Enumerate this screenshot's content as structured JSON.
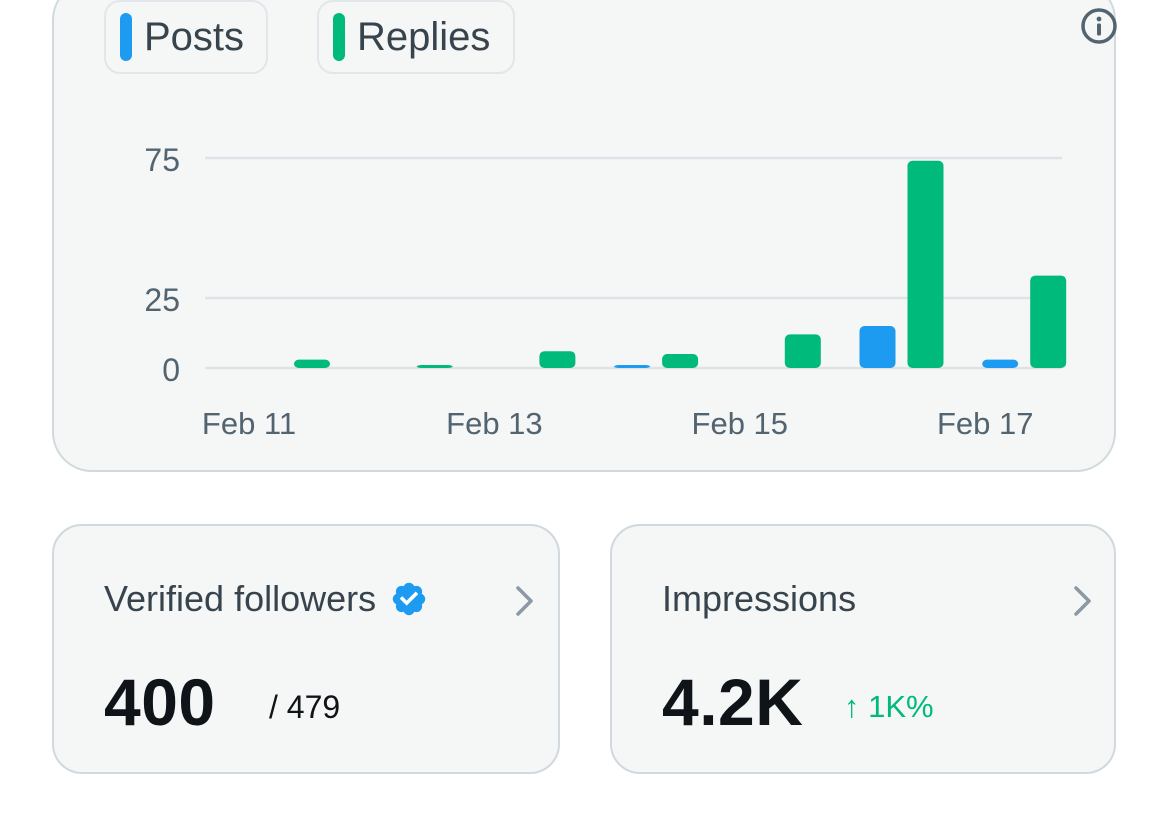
{
  "legend": {
    "posts": {
      "label": "Posts",
      "color": "#1d9bf0"
    },
    "replies": {
      "label": "Replies",
      "color": "#00ba7c"
    }
  },
  "chart_data": {
    "type": "bar",
    "categories": [
      "Feb 11",
      "Feb 12",
      "Feb 13",
      "Feb 14",
      "Feb 15",
      "Feb 16",
      "Feb 17"
    ],
    "series": [
      {
        "name": "Posts",
        "color": "#1d9bf0",
        "values": [
          0,
          0,
          0,
          1,
          0,
          15,
          3
        ]
      },
      {
        "name": "Replies",
        "color": "#00ba7c",
        "values": [
          3,
          1,
          6,
          5,
          12,
          74,
          33
        ]
      }
    ],
    "x_tick_labels": [
      "Feb 11",
      "Feb 13",
      "Feb 15",
      "Feb 17"
    ],
    "y_ticks": [
      0,
      25,
      75
    ],
    "ylim": [
      0,
      75
    ],
    "grid": true,
    "legend_position": "top-left",
    "title": "",
    "xlabel": "",
    "ylabel": ""
  },
  "cards": {
    "verified": {
      "title": "Verified followers",
      "value": "400",
      "total": "/ 479"
    },
    "impressions": {
      "title": "Impressions",
      "value": "4.2K",
      "change": "↑ 1K%"
    }
  }
}
